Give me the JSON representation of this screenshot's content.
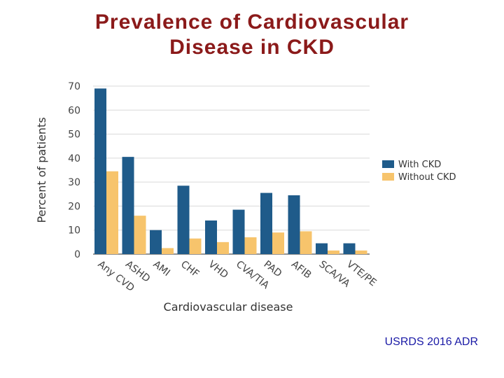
{
  "slide": {
    "title_line1": "Prevalence of Cardiovascular",
    "title_line2": "Disease in CKD",
    "source": "USRDS 2016 ADR"
  },
  "colors": {
    "title": "#8b1a1a",
    "with_ckd": "#1f5b8a",
    "without_ckd": "#f7c46c",
    "source": "#1a1aa6"
  },
  "chart_data": {
    "type": "bar",
    "xlabel": "Cardiovascular disease",
    "ylabel": "Percent of patients",
    "ylim": [
      0,
      70
    ],
    "yticks": [
      0,
      10,
      20,
      30,
      40,
      50,
      60,
      70
    ],
    "grid": true,
    "legend_position": "right",
    "categories": [
      "Any CVD",
      "ASHD",
      "AMI",
      "CHF",
      "VHD",
      "CVA/TIA",
      "PAD",
      "AFIB",
      "SCA/VA",
      "VTE/PE"
    ],
    "series": [
      {
        "name": "With CKD",
        "values": [
          69,
          40.5,
          10,
          28.5,
          14,
          18.5,
          25.5,
          24.5,
          4.5,
          4.5
        ]
      },
      {
        "name": "Without CKD",
        "values": [
          34.5,
          16,
          2.5,
          6.5,
          5,
          7,
          9,
          9.5,
          1.5,
          1.5
        ]
      }
    ]
  }
}
